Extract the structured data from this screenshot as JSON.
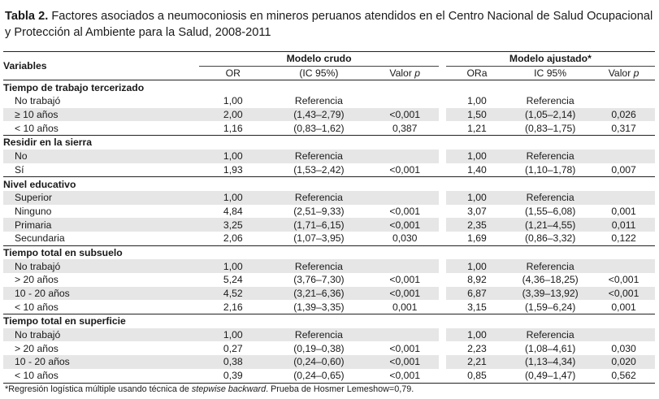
{
  "caption": {
    "label": "Tabla 2.",
    "text": "Factores asociados a neumoconiosis en mineros peruanos atendidos en el Centro Nacional de Salud Ocupacional y Protección al Ambiente para la Salud, 2008-2011"
  },
  "header": {
    "variables": "Variables",
    "modelo_crudo": "Modelo crudo",
    "modelo_ajustado": "Modelo ajustado*",
    "or": "OR",
    "ic_crudo": "(IC 95%)",
    "valor_p": "Valor p",
    "ora": "ORa",
    "ic_ajustado": "IC 95%",
    "valor_p2": "Valor p"
  },
  "sections": [
    {
      "title": "Tiempo de trabajo tercerizado",
      "rows": [
        [
          "No trabajó",
          "1,00",
          "Referencia",
          "",
          "1,00",
          "Referencia",
          ""
        ],
        [
          "≥ 10 años",
          "2,00",
          "(1,43–2,79)",
          "<0,001",
          "1,50",
          "(1,05–2,14)",
          "0,026"
        ],
        [
          "< 10 años",
          "1,16",
          "(0,83–1,62)",
          "0,387",
          "1,21",
          "(0,83–1,75)",
          "0,317"
        ]
      ]
    },
    {
      "title": "Residir en la sierra",
      "rows": [
        [
          "No",
          "1,00",
          "Referencia",
          "",
          "1,00",
          "Referencia",
          ""
        ],
        [
          "Sí",
          "1,93",
          "(1,53–2,42)",
          "<0,001",
          "1,40",
          "(1,10–1,78)",
          "0,007"
        ]
      ]
    },
    {
      "title": "Nivel educativo",
      "rows": [
        [
          "Superior",
          "1,00",
          "Referencia",
          "",
          "1,00",
          "Referencia",
          ""
        ],
        [
          "Ninguno",
          "4,84",
          "(2,51–9,33)",
          "<0,001",
          "3,07",
          "(1,55–6,08)",
          "0,001"
        ],
        [
          "Primaria",
          "3,25",
          "(1,71–6,15)",
          "<0,001",
          "2,35",
          "(1,21–4,55)",
          "0,011"
        ],
        [
          "Secundaria",
          "2,06",
          "(1,07–3,95)",
          "0,030",
          "1,69",
          "(0,86–3,32)",
          "0,122"
        ]
      ]
    },
    {
      "title": "Tiempo total en subsuelo",
      "rows": [
        [
          "No trabajó",
          "1,00",
          "Referencia",
          "",
          "1,00",
          "Referencia",
          ""
        ],
        [
          "> 20 años",
          "5,24",
          "(3,76–7,30)",
          "<0,001",
          "8,92",
          "(4,36–18,25)",
          "<0,001"
        ],
        [
          "10 - 20 años",
          "4,52",
          "(3,21–6,36)",
          "<0,001",
          "6,87",
          "(3,39–13,92)",
          "<0,001"
        ],
        [
          "< 10 años",
          "2,16",
          "(1,39–3,35)",
          "0,001",
          "3,15",
          "(1,59–6,24)",
          "0,001"
        ]
      ]
    },
    {
      "title": "Tiempo total en superficie",
      "rows": [
        [
          "No trabajó",
          "1,00",
          "Referencia",
          "",
          "1,00",
          "Referencia",
          ""
        ],
        [
          "> 20 años",
          "0,27",
          "(0,19–0,38)",
          "<0,001",
          "2,23",
          "(1,08–4,61)",
          "0,030"
        ],
        [
          "10 - 20 años",
          "0,38",
          "(0,24–0,60)",
          "<0,001",
          "2,21",
          "(1,13–4,34)",
          "0,020"
        ],
        [
          "< 10 años",
          "0,39",
          "(0,24–0,65)",
          "<0,001",
          "0,85",
          "(0,49–1,47)",
          "0,562"
        ]
      ]
    }
  ],
  "footnote": {
    "pre": "*Regresión logística múltiple usando técnica de ",
    "italic": "stepwise backward",
    "post": ". Prueba de Hosmer Lemeshow=0,79."
  }
}
